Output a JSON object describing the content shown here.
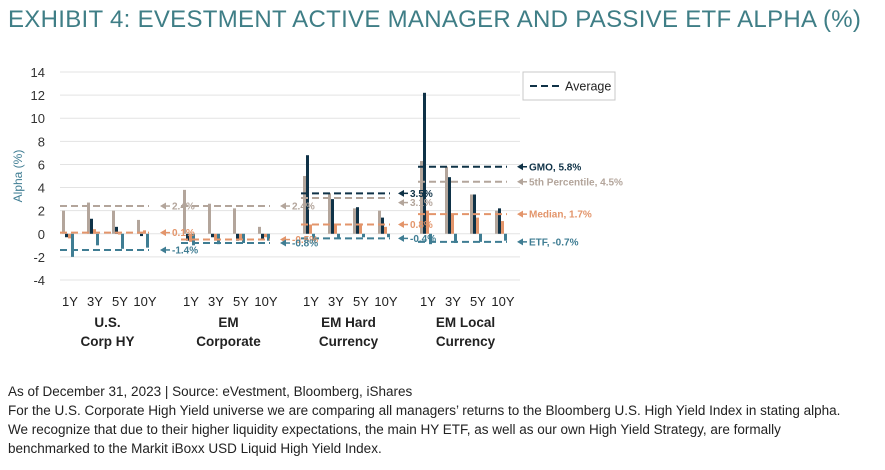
{
  "title": "EXHIBIT 4: EVESTMENT ACTIVE MANAGER AND PASSIVE ETF ALPHA (%)",
  "colors": {
    "gmo": "#0f3247",
    "percentile5": "#b3a59b",
    "median": "#e3956b",
    "etf": "#3f7d93",
    "title": "#3f7e86"
  },
  "legend": {
    "label": "Average",
    "position": "top-right"
  },
  "chart_data": {
    "type": "bar",
    "ylabel": "Alpha (%)",
    "xlabel": "",
    "ylim": [
      -4,
      14
    ],
    "yticks": [
      -4,
      -2,
      0,
      2,
      4,
      6,
      8,
      10,
      12,
      14
    ],
    "groups": [
      {
        "name_line1": "U.S.",
        "name_line2": "Corp HY",
        "periods": [
          "1Y",
          "3Y",
          "5Y",
          "10Y"
        ],
        "gmo": [
          -0.3,
          1.3,
          0.6,
          -0.2
        ],
        "percentile5": [
          2.0,
          2.7,
          2.0,
          1.2
        ],
        "median": [
          -0.4,
          0.4,
          0.0,
          0.3
        ],
        "etf": [
          -2.0,
          -1.0,
          -1.3,
          -1.2
        ],
        "averages": [
          {
            "name": "5th Percentile",
            "value": 2.4,
            "label": "2.4%"
          },
          {
            "name": "Median",
            "value": 0.1,
            "label": "0.1%"
          },
          {
            "name": "ETF",
            "value": -1.4,
            "label": "-1.4%"
          }
        ]
      },
      {
        "name_line1": "EM",
        "name_line2": "Corporate",
        "periods": [
          "1Y",
          "3Y",
          "5Y",
          "10Y"
        ],
        "gmo": [
          -0.6,
          -0.3,
          -0.6,
          -0.5
        ],
        "percentile5": [
          3.8,
          2.6,
          2.2,
          0.6
        ],
        "median": [
          -0.7,
          -0.6,
          -0.5,
          -0.3
        ],
        "etf": [
          -1.0,
          -0.9,
          -0.8,
          -0.6
        ],
        "averages": [
          {
            "name": "5th Percentile",
            "value": 2.4,
            "label": "2.4%"
          },
          {
            "name": "Median",
            "value": -0.5,
            "label": "-0.5%"
          },
          {
            "name": "ETF",
            "value": -0.8,
            "label": "-0.8%"
          }
        ]
      },
      {
        "name_line1": "EM Hard",
        "name_line2": "Currency",
        "periods": [
          "1Y",
          "3Y",
          "5Y",
          "10Y"
        ],
        "gmo": [
          6.8,
          3.0,
          2.3,
          1.4
        ],
        "percentile5": [
          5.0,
          3.5,
          2.2,
          2.0
        ],
        "median": [
          0.8,
          0.8,
          0.9,
          0.6
        ],
        "etf": [
          -0.6,
          -0.4,
          -0.3,
          -0.3
        ],
        "averages": [
          {
            "name": "GMO",
            "value": 3.5,
            "label": "3.5%"
          },
          {
            "name": "5th Percentile",
            "value": 3.1,
            "label": "3.1%"
          },
          {
            "name": "Median",
            "value": 0.8,
            "label": "0.8%"
          },
          {
            "name": "ETF",
            "value": -0.4,
            "label": "-0.4%"
          }
        ]
      },
      {
        "name_line1": "EM Local",
        "name_line2": "Currency",
        "periods": [
          "1Y",
          "3Y",
          "5Y",
          "10Y"
        ],
        "gmo": [
          12.2,
          4.9,
          3.4,
          2.2
        ],
        "percentile5": [
          6.3,
          5.8,
          3.4,
          2.0
        ],
        "median": [
          2.0,
          1.7,
          1.4,
          1.1
        ],
        "etf": [
          -0.9,
          -0.8,
          -0.7,
          -0.6
        ],
        "averages": [
          {
            "name": "GMO",
            "value": 5.8,
            "label": "GMO, 5.8%"
          },
          {
            "name": "5th Percentile",
            "value": 4.5,
            "label": "5th Percentile, 4.5%"
          },
          {
            "name": "Median",
            "value": 1.7,
            "label": "Median, 1.7%"
          },
          {
            "name": "ETF",
            "value": -0.7,
            "label": "ETF, -0.7%"
          }
        ]
      }
    ]
  },
  "notes": {
    "source": "As of December 31, 2023 | Source: eVestment, Bloomberg, iShares",
    "line1": "For the U.S. Corporate High Yield universe we are comparing all managers’ returns to the Bloomberg U.S. High Yield Index in stating alpha.",
    "line2": "We recognize that due to their higher liquidity expectations, the main HY ETF, as well as our own High Yield Strategy, are formally",
    "line3": "benchmarked to the Markit iBoxx USD Liquid High Yield Index."
  }
}
